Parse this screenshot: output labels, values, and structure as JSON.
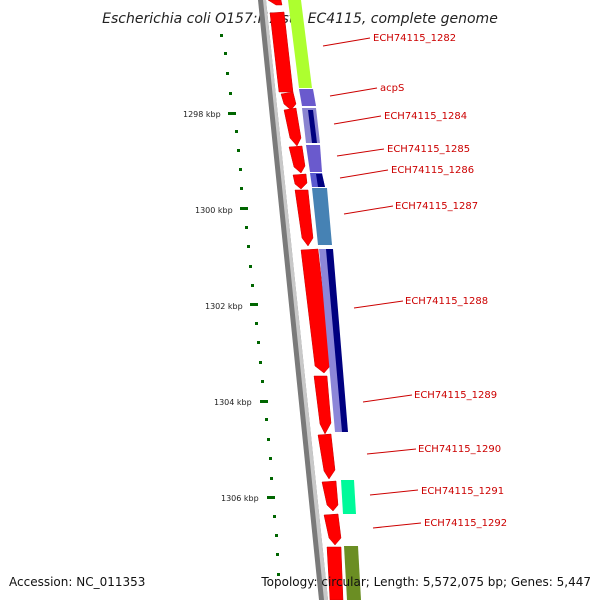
{
  "title": "Escherichia coli O157:H7 str. EC4115, complete genome",
  "accession": "Accession: NC_011353",
  "topology": "Topology: circular; Length: 5,572,075 bp; Genes: 5,447",
  "scale_labels": [
    "1298 kbp",
    "1300 kbp",
    "1302 kbp",
    "1304 kbp",
    "1306 kbp"
  ],
  "gene_labels": [
    "ECH74115_1282",
    "acpS",
    "ECH74115_1284",
    "ECH74115_1285",
    "ECH74115_1286",
    "ECH74115_1287",
    "ECH74115_1288",
    "ECH74115_1289",
    "ECH74115_1290",
    "ECH74115_1291",
    "ECH74115_1292"
  ],
  "colors": {
    "cds": "#ff0000",
    "backbone": "#808080",
    "label": "#cc0000",
    "tick": "#006600"
  }
}
